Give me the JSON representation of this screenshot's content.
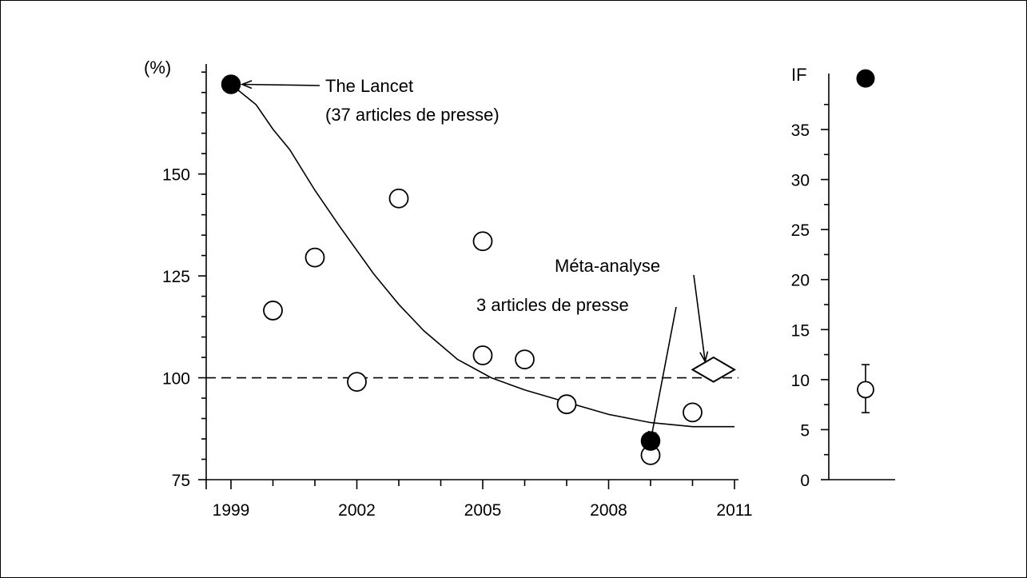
{
  "chart_data": [
    {
      "type": "scatter",
      "title": "",
      "xlabel": "",
      "ylabel": "(%)",
      "xlim": [
        1998.7,
        2011
      ],
      "ylim": [
        75,
        177
      ],
      "x_tick_labels": [
        "1999",
        "2002",
        "2005",
        "2008",
        "2011"
      ],
      "x_ticks": [
        1999,
        2002,
        2005,
        2008,
        2011
      ],
      "x_minor_ticks": [
        2000,
        2001,
        2003,
        2004,
        2006,
        2007,
        2009,
        2010
      ],
      "y_tick_labels": [
        "75",
        "100",
        "125",
        "150"
      ],
      "y_ticks": [
        75,
        100,
        125,
        150
      ],
      "y_minor_ticks": [
        80,
        85,
        90,
        95,
        105,
        110,
        115,
        120,
        130,
        135,
        140,
        145,
        155,
        160,
        165,
        170,
        175
      ],
      "reference_line": {
        "y": 100,
        "style": "dashed"
      },
      "open_points": [
        {
          "x": 2000,
          "y": 116.5
        },
        {
          "x": 2001,
          "y": 129.5
        },
        {
          "x": 2002,
          "y": 99
        },
        {
          "x": 2003,
          "y": 144
        },
        {
          "x": 2005,
          "y": 133.5
        },
        {
          "x": 2005,
          "y": 105.5
        },
        {
          "x": 2006,
          "y": 104.5
        },
        {
          "x": 2007,
          "y": 93.5
        },
        {
          "x": 2009,
          "y": 81
        },
        {
          "x": 2010,
          "y": 91.5
        }
      ],
      "filled_points": [
        {
          "x": 1999,
          "y": 172
        },
        {
          "x": 2009,
          "y": 84.5
        }
      ],
      "trend_line": [
        {
          "x": 1999,
          "y": 172
        },
        {
          "x": 1999.6,
          "y": 167
        },
        {
          "x": 2000,
          "y": 161
        },
        {
          "x": 2000.4,
          "y": 156
        },
        {
          "x": 2001,
          "y": 146
        },
        {
          "x": 2001.6,
          "y": 137
        },
        {
          "x": 2002.4,
          "y": 125.5
        },
        {
          "x": 2003,
          "y": 118
        },
        {
          "x": 2003.6,
          "y": 111.5
        },
        {
          "x": 2004.4,
          "y": 104.5
        },
        {
          "x": 2005.2,
          "y": 100
        },
        {
          "x": 2006,
          "y": 97
        },
        {
          "x": 2007,
          "y": 94
        },
        {
          "x": 2008,
          "y": 91
        },
        {
          "x": 2009,
          "y": 89
        },
        {
          "x": 2010,
          "y": 88
        },
        {
          "x": 2011,
          "y": 88
        }
      ],
      "meta_analysis_diamond": {
        "x_from": 2010.0,
        "x_to": 2011.0,
        "y_center": 102,
        "y_half_height": 3
      },
      "annotations": [
        {
          "text_lines": [
            "The Lancet",
            "(37 articles de presse)"
          ],
          "points_to": {
            "x": 1999,
            "y": 172
          }
        },
        {
          "text_lines": [
            "Méta-analyse"
          ],
          "points_to": {
            "x": 2010.3,
            "y": 104
          }
        },
        {
          "text_lines": [
            "3 articles de presse"
          ],
          "points_to": {
            "x": 2009,
            "y": 88
          }
        }
      ],
      "grid": false,
      "legend": "none"
    },
    {
      "type": "scatter",
      "title": "",
      "xlabel": "",
      "ylabel": "IF",
      "ylim": [
        0,
        40.5
      ],
      "y_tick_labels": [
        "0",
        "5",
        "10",
        "15",
        "20",
        "25",
        "30",
        "35"
      ],
      "y_ticks": [
        0,
        5,
        10,
        15,
        20,
        25,
        30,
        35
      ],
      "y_minor_ticks": [
        2.5,
        7.5,
        12.5,
        17.5,
        22.5,
        27.5,
        32.5,
        37.5
      ],
      "filled_points": [
        {
          "y": 40.1
        }
      ],
      "open_points": [
        {
          "y": 9.0,
          "error_low": 6.7,
          "error_high": 11.5
        }
      ],
      "grid": false,
      "legend": "none"
    }
  ]
}
